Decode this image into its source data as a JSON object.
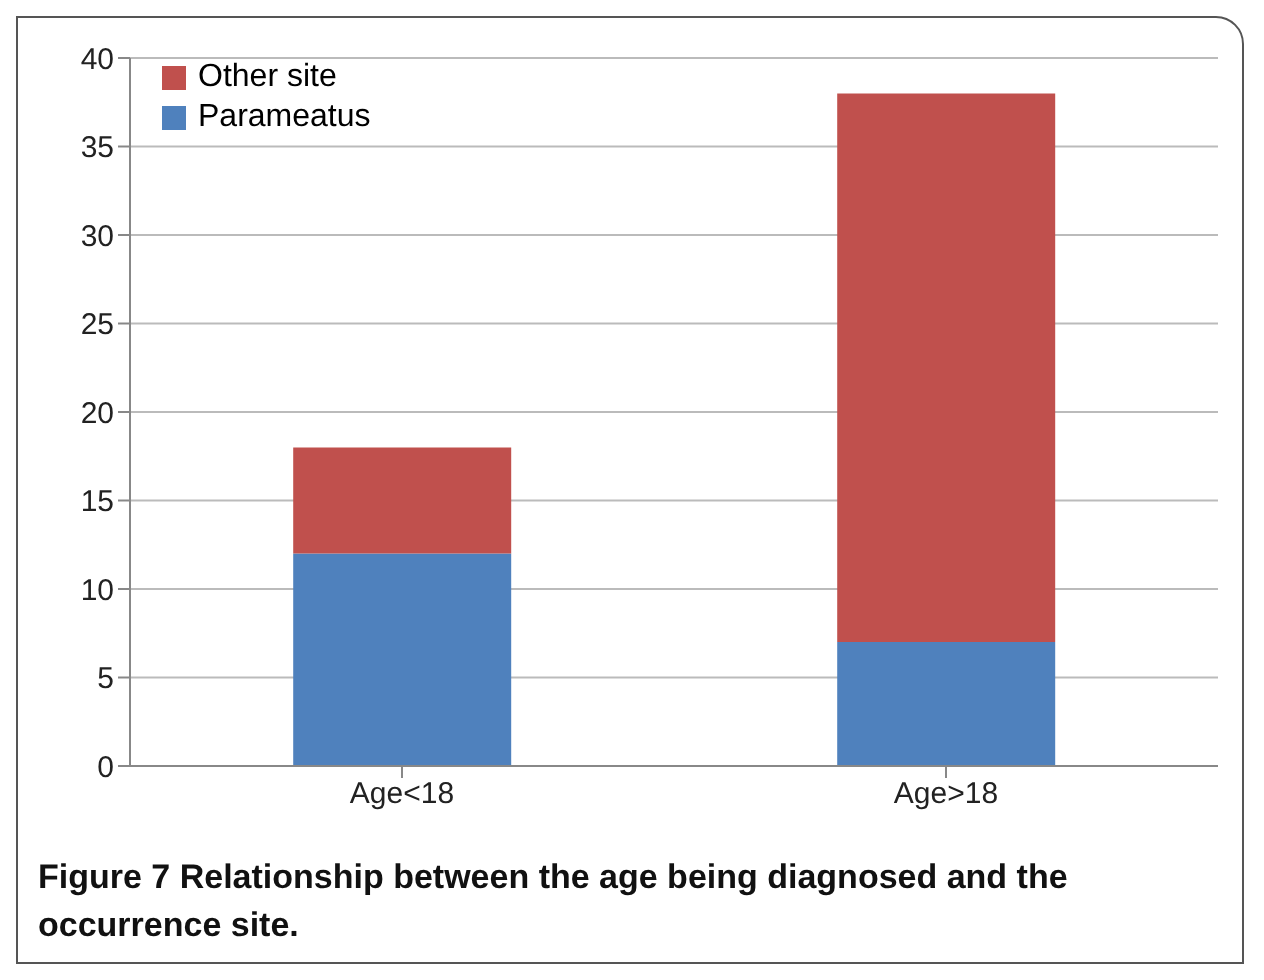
{
  "chart_data": {
    "type": "bar",
    "stacked": true,
    "categories": [
      "Age<18",
      "Age>18"
    ],
    "series": [
      {
        "name": "Parameatus",
        "color": "#4f81bd",
        "values": [
          12,
          7
        ]
      },
      {
        "name": "Other site",
        "color": "#c0504d",
        "values": [
          6,
          31
        ]
      }
    ],
    "ylim": [
      0,
      40
    ],
    "yticks": [
      0,
      5,
      10,
      15,
      20,
      25,
      30,
      35,
      40
    ],
    "grid": "y",
    "legend": "top left",
    "annotations": [
      "Figure 7 Relationship between the age being diagnosed and the occurrence site."
    ]
  }
}
